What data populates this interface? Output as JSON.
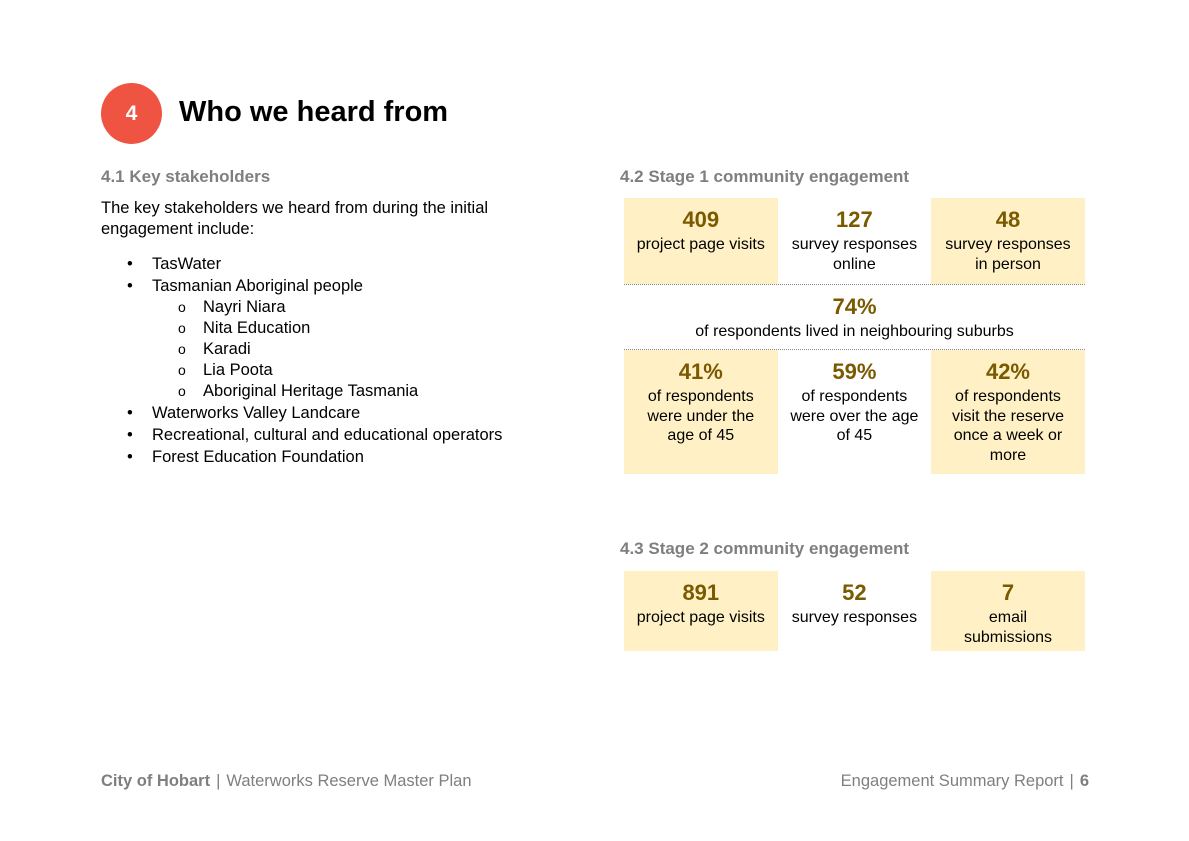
{
  "section": {
    "number": "4",
    "title": "Who we heard from"
  },
  "stakeholders": {
    "heading": "4.1 Key stakeholders",
    "intro": "The key stakeholders we heard from during the initial engagement include:",
    "items": [
      {
        "level": 1,
        "text": "TasWater"
      },
      {
        "level": 1,
        "text": "Tasmanian Aboriginal people"
      },
      {
        "level": 2,
        "text": "Nayri Niara"
      },
      {
        "level": 2,
        "text": "Nita Education"
      },
      {
        "level": 2,
        "text": "Karadi"
      },
      {
        "level": 2,
        "text": "Lia Poota"
      },
      {
        "level": 2,
        "text": "Aboriginal Heritage Tasmania"
      },
      {
        "level": 1,
        "text": "Waterworks Valley Landcare"
      },
      {
        "level": 1,
        "text": "Recreational, cultural and educational operators"
      },
      {
        "level": 1,
        "text": "Forest Education Foundation"
      }
    ]
  },
  "stage1": {
    "heading": "4.2 Stage 1 community engagement",
    "row1": [
      {
        "value": "409",
        "label": "project page visits",
        "shaded": true
      },
      {
        "value": "127",
        "label": "survey responses online",
        "shaded": false
      },
      {
        "value": "48",
        "label": "survey responses in person",
        "shaded": true
      }
    ],
    "full": {
      "value": "74%",
      "label": "of respondents lived in neighbouring suburbs"
    },
    "row2": [
      {
        "value": "41%",
        "label": "of respondents were under the age of 45",
        "shaded": true
      },
      {
        "value": "59%",
        "label": "of respondents were over the age of 45",
        "shaded": false
      },
      {
        "value": "42%",
        "label": "of respondents visit the reserve once a week or more",
        "shaded": true
      }
    ]
  },
  "stage2": {
    "heading": "4.3 Stage 2 community engagement",
    "row": [
      {
        "value": "891",
        "label": "project page visits",
        "shaded": true
      },
      {
        "value": "52",
        "label": "survey responses",
        "shaded": false
      },
      {
        "value": "7",
        "label": "email submissions",
        "shaded": true
      }
    ]
  },
  "footer": {
    "org": "City of Hobart",
    "project": "Waterworks Reserve Master Plan",
    "report": "Engagement Summary Report",
    "page": "6",
    "separator": "|"
  }
}
